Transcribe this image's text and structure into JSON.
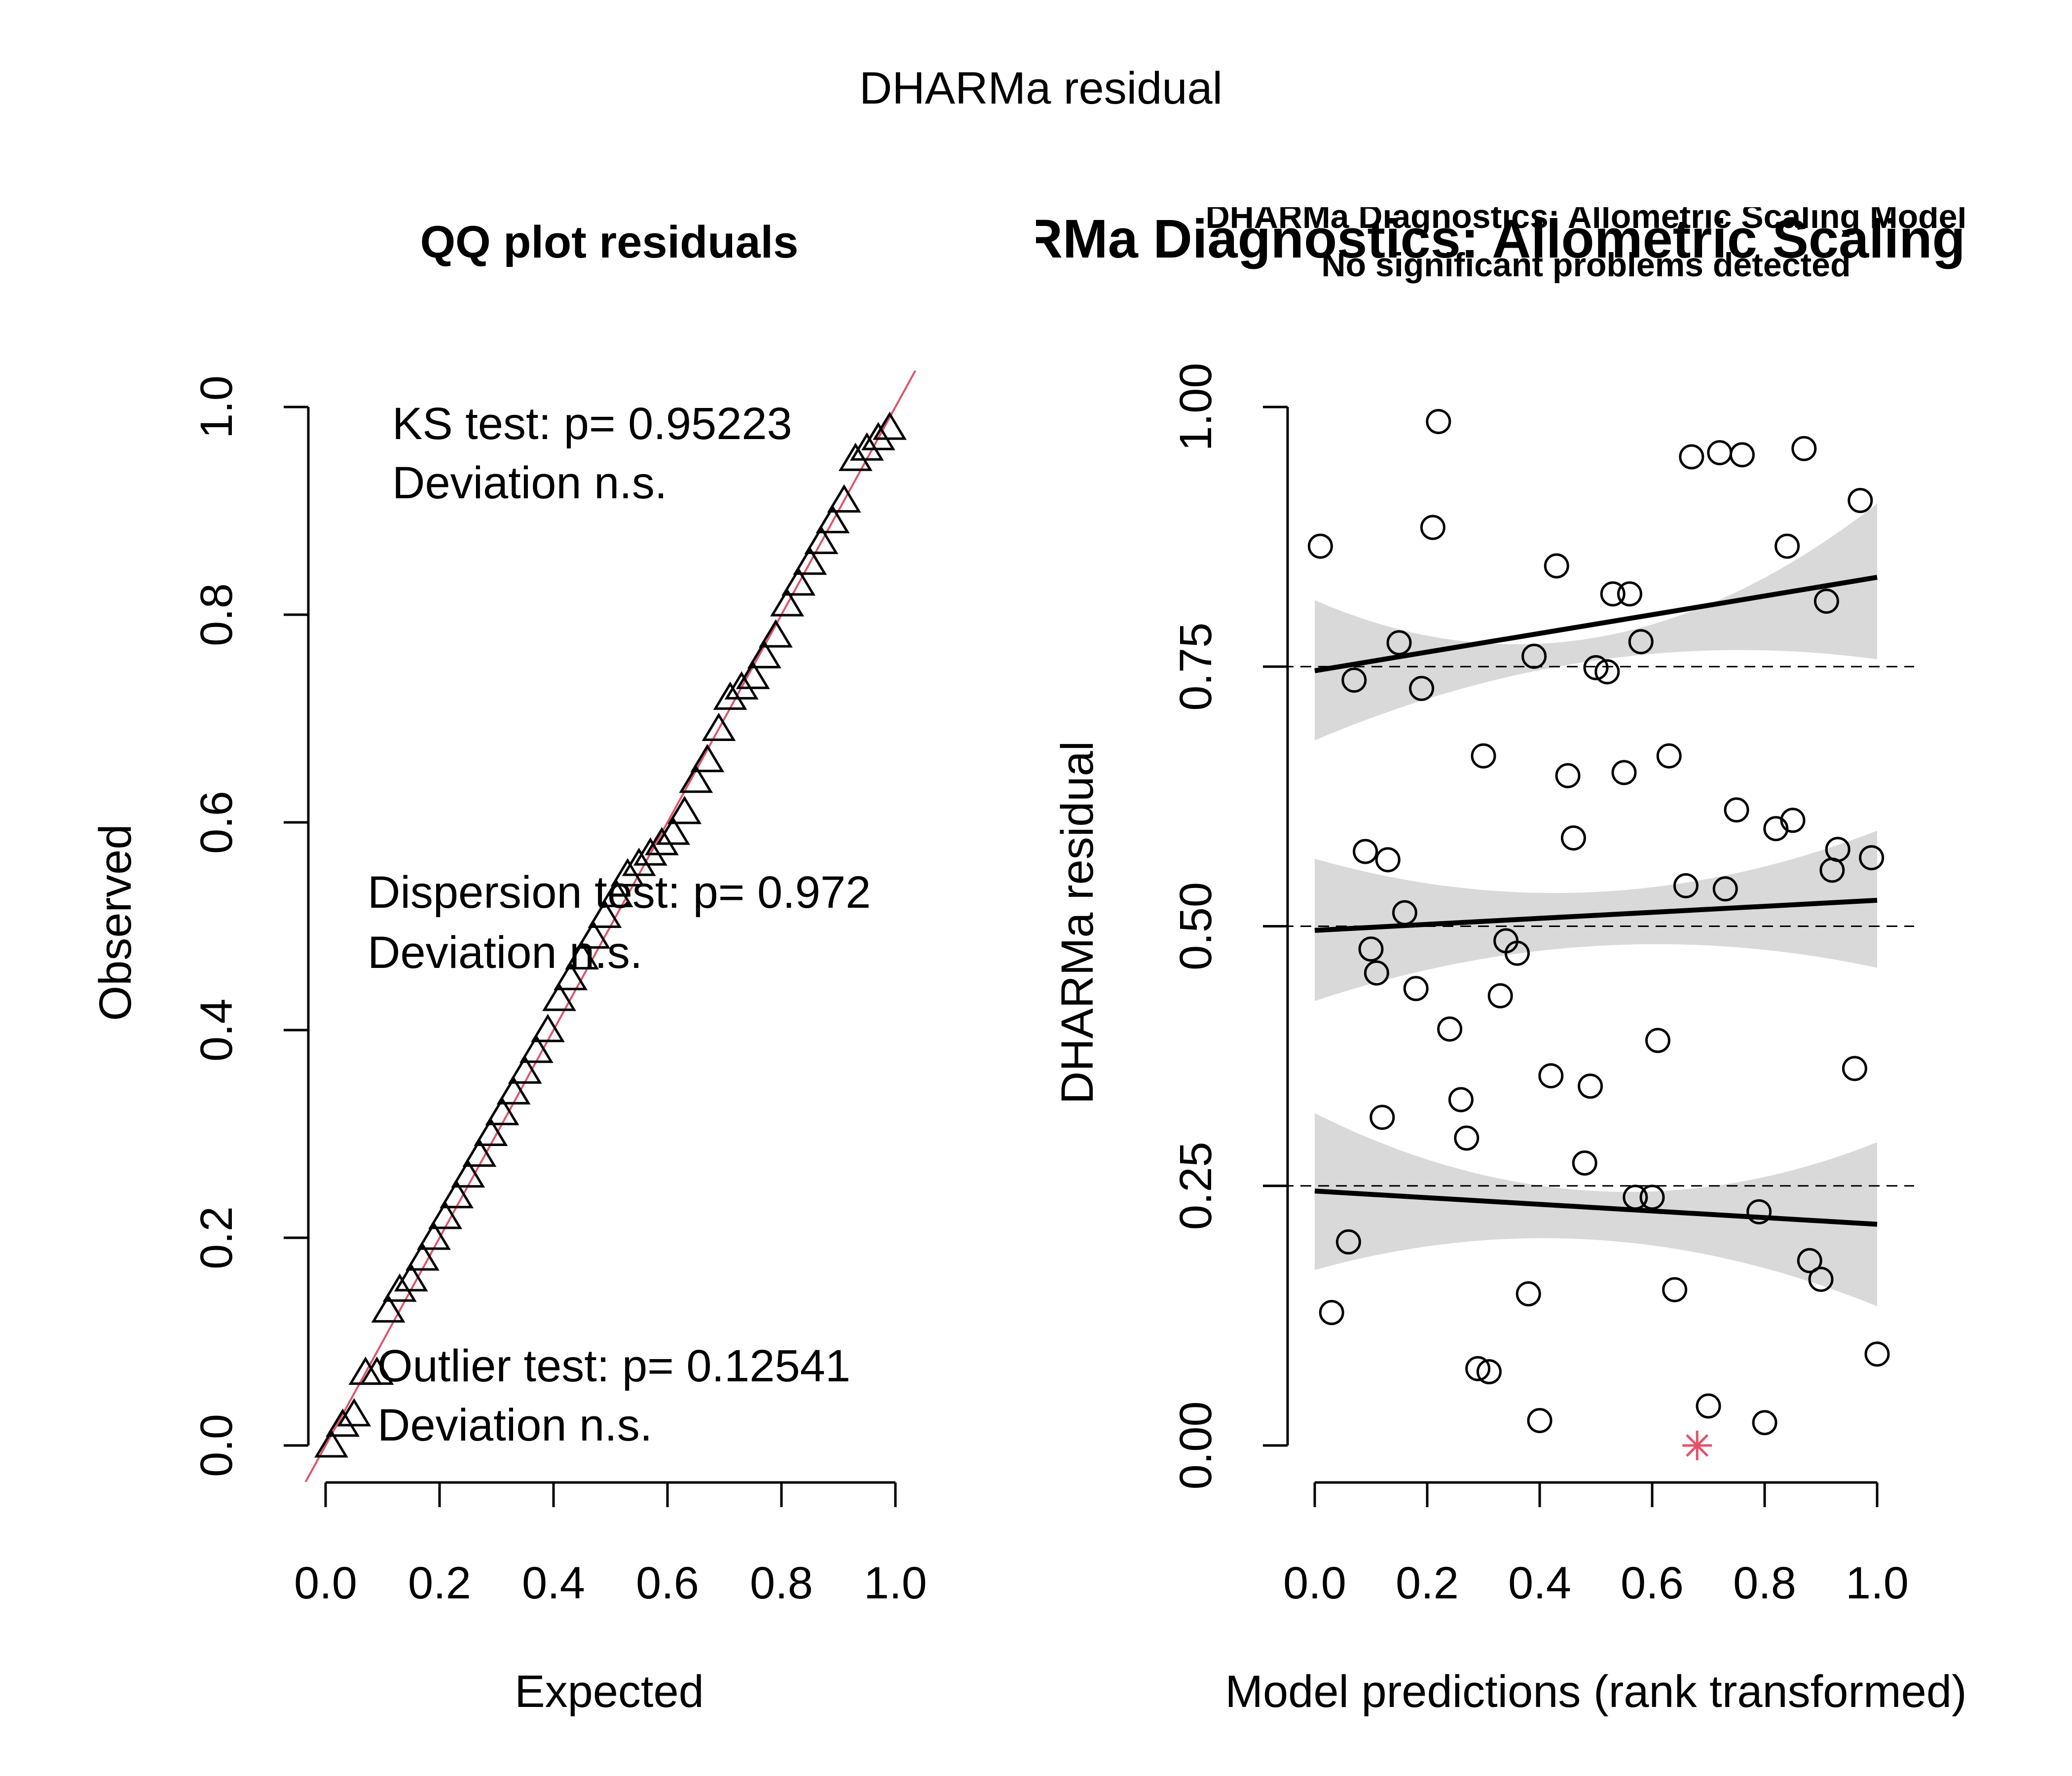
{
  "figure": {
    "title": "DHARMa residual"
  },
  "qq": {
    "title": "QQ plot residuals",
    "xlabel": "Expected",
    "ylabel": "Observed",
    "x_ticks": [
      "0.0",
      "0.2",
      "0.4",
      "0.6",
      "0.8",
      "1.0"
    ],
    "y_ticks": [
      "0.0",
      "0.2",
      "0.4",
      "0.6",
      "0.8",
      "1.0"
    ],
    "ks_test": "KS test: p= 0.95223",
    "ks_deviation": "Deviation  n.s.",
    "dispersion_test": "Dispersion test: p= 0.972",
    "dispersion_deviation": "Deviation  n.s.",
    "outlier_test": "Outlier test: p= 0.12541",
    "outlier_deviation": "Deviation  n.s."
  },
  "residual": {
    "title_large": "DHARMa Diagnostics: Allometric Scaling",
    "title_overlay_1": "DHARMa Diagnostics: Allometric Scaling Model",
    "title_overlay_2": "No significant problems detected",
    "xlabel": "Model predictions (rank transformed)",
    "ylabel": "DHARMa residual",
    "x_ticks": [
      "0.0",
      "0.2",
      "0.4",
      "0.6",
      "0.8",
      "1.0"
    ],
    "y_ticks": [
      "0.00",
      "0.25",
      "0.50",
      "0.75",
      "1.00"
    ]
  },
  "colors": {
    "reference_line": "#df536b",
    "outlier_marker": "#df536b",
    "confidence_band": "#d9d9d9",
    "points": "#000000"
  },
  "chart_data": [
    {
      "type": "scatter",
      "title": "QQ plot residuals",
      "xlabel": "Expected",
      "ylabel": "Observed",
      "xlim": [
        0,
        1
      ],
      "ylim": [
        0,
        1
      ],
      "marker": "triangle",
      "reference_line": {
        "intercept": 0,
        "slope": 1
      },
      "series": [
        {
          "x": [
            0.01,
            0.03,
            0.05,
            0.07,
            0.09,
            0.11,
            0.13,
            0.15,
            0.17,
            0.19,
            0.21,
            0.23,
            0.25,
            0.27,
            0.29,
            0.31,
            0.33,
            0.35,
            0.37,
            0.39,
            0.41,
            0.43,
            0.45,
            0.47,
            0.49,
            0.51,
            0.53,
            0.55,
            0.57,
            0.59,
            0.61,
            0.63,
            0.65,
            0.67,
            0.69,
            0.71,
            0.73,
            0.75,
            0.77,
            0.79,
            0.81,
            0.83,
            0.85,
            0.87,
            0.89,
            0.91,
            0.93,
            0.95,
            0.97,
            0.99
          ],
          "y": [
            0.0,
            0.02,
            0.03,
            0.07,
            0.07,
            0.13,
            0.15,
            0.16,
            0.18,
            0.2,
            0.22,
            0.24,
            0.26,
            0.28,
            0.3,
            0.32,
            0.34,
            0.36,
            0.38,
            0.4,
            0.43,
            0.45,
            0.47,
            0.49,
            0.51,
            0.53,
            0.55,
            0.56,
            0.57,
            0.58,
            0.59,
            0.61,
            0.64,
            0.66,
            0.69,
            0.72,
            0.73,
            0.74,
            0.76,
            0.78,
            0.81,
            0.83,
            0.85,
            0.87,
            0.89,
            0.91,
            0.95,
            0.96,
            0.97,
            0.98
          ]
        }
      ],
      "annotations": [
        "KS test: p= 0.95223",
        "Deviation  n.s.",
        "Dispersion test: p= 0.972",
        "Deviation  n.s.",
        "Outlier test: p= 0.12541",
        "Deviation  n.s."
      ]
    },
    {
      "type": "scatter",
      "title": "DHARMa Diagnostics: Allometric Scaling Model",
      "subtitle": "No significant problems detected",
      "xlabel": "Model predictions (rank transformed)",
      "ylabel": "DHARMa residual",
      "xlim": [
        0,
        1
      ],
      "ylim": [
        0,
        1
      ],
      "marker": "circle",
      "reference_lines": [
        0.25,
        0.5,
        0.75
      ],
      "series": [
        {
          "x": [
            0.01,
            0.03,
            0.06,
            0.07,
            0.09,
            0.1,
            0.11,
            0.12,
            0.13,
            0.15,
            0.16,
            0.18,
            0.19,
            0.21,
            0.22,
            0.24,
            0.26,
            0.27,
            0.29,
            0.3,
            0.31,
            0.33,
            0.34,
            0.36,
            0.38,
            0.39,
            0.4,
            0.42,
            0.43,
            0.45,
            0.46,
            0.48,
            0.49,
            0.5,
            0.52,
            0.53,
            0.55,
            0.56,
            0.57,
            0.58,
            0.6,
            0.61,
            0.63,
            0.64,
            0.66,
            0.67,
            0.7,
            0.72,
            0.73,
            0.75,
            0.76,
            0.79,
            0.8,
            0.82,
            0.84,
            0.85,
            0.87,
            0.88,
            0.9,
            0.91,
            0.92,
            0.93,
            0.96,
            0.97,
            0.99,
            1.0
          ],
          "y": [
            0.866,
            0.128,
            0.196,
            0.737,
            0.572,
            0.478,
            0.455,
            0.316,
            0.564,
            0.773,
            0.513,
            0.44,
            0.729,
            0.884,
            0.986,
            0.401,
            0.333,
            0.296,
            0.074,
            0.664,
            0.071,
            0.433,
            0.486,
            0.474,
            0.146,
            0.76,
            0.024,
            0.356,
            0.847,
            0.645,
            0.585,
            0.272,
            0.346,
            0.749,
            0.745,
            0.82,
            0.648,
            0.82,
            0.239,
            0.774,
            0.239,
            0.39,
            0.664,
            0.15,
            0.539,
            0.952,
            0.038,
            0.956,
            0.536,
            0.612,
            0.954,
            0.225,
            0.022,
            0.594,
            0.866,
            0.602,
            0.96,
            0.178,
            0.16,
            0.813,
            0.554,
            0.574,
            0.363,
            0.91,
            0.566,
            0.088
          ]
        },
        {
          "name": "outlier",
          "x": [
            0.68
          ],
          "y": [
            0.0
          ]
        }
      ],
      "quantile_lines": [
        {
          "quantile": 0.25,
          "x": [
            0,
            1
          ],
          "y": [
            0.245,
            0.213
          ]
        },
        {
          "quantile": 0.5,
          "x": [
            0,
            1
          ],
          "y": [
            0.496,
            0.525
          ]
        },
        {
          "quantile": 0.75,
          "x": [
            0,
            1
          ],
          "y": [
            0.746,
            0.836
          ]
        }
      ],
      "confidence_bands": [
        {
          "quantile": 0.25,
          "x": [
            0,
            0.5,
            1
          ],
          "lower": [
            0.169,
            0.198,
            0.134
          ],
          "upper": [
            0.32,
            0.245,
            0.292
          ]
        },
        {
          "quantile": 0.5,
          "x": [
            0,
            0.5,
            1
          ],
          "lower": [
            0.428,
            0.481,
            0.46
          ],
          "upper": [
            0.565,
            0.533,
            0.592
          ]
        },
        {
          "quantile": 0.75,
          "x": [
            0,
            0.5,
            1
          ],
          "lower": [
            0.679,
            0.756,
            0.757
          ],
          "upper": [
            0.814,
            0.778,
            0.907
          ]
        }
      ]
    }
  ]
}
